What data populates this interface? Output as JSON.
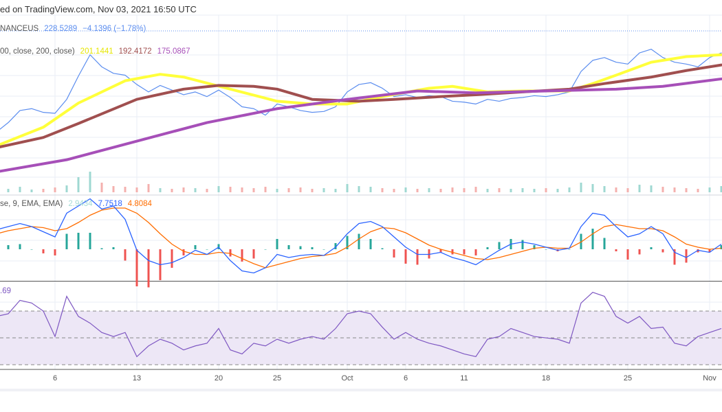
{
  "header": {
    "text": "ed on TradingView.com, Nov 03, 2021 16:50 UTC"
  },
  "legends": {
    "symbol": {
      "name": "NANCEUS",
      "last": "228.5289",
      "change": "−4.1396 (−1.78%)"
    },
    "ma": {
      "params": "00, close, 200, close)",
      "v1": "201.1441",
      "v2": "192.4172",
      "v3": "175.0867"
    },
    "macd": {
      "params": "se, 9, EMA, EMA)",
      "hist": "2.9434",
      "macd": "7.7518",
      "signal": "4.8084"
    },
    "rsi": {
      "value": ".69"
    }
  },
  "colors": {
    "price": "#5b8def",
    "ma50": "#ffff3b",
    "ma100": "#a04f4f",
    "ma200": "#a64fb8",
    "macd": "#2962ff",
    "signal": "#ff6d00",
    "hist_up": "#26a69a",
    "hist_down": "#ef5350",
    "rsi": "#7e57c2",
    "rsi_band": "#ede7f6",
    "grid": "#e9eef5"
  },
  "chart_data": [
    {
      "type": "line",
      "panel": "price",
      "ylim": [
        60,
        230
      ],
      "series": [
        {
          "name": "price",
          "color": "#5b8def",
          "values": [
            125,
            135,
            148,
            150,
            146,
            145,
            160,
            185,
            208,
            195,
            188,
            186,
            176,
            168,
            175,
            170,
            165,
            168,
            163,
            170,
            162,
            152,
            150,
            143,
            155,
            152,
            148,
            146,
            147,
            152,
            168,
            176,
            178,
            172,
            163,
            165,
            162,
            164,
            163,
            158,
            157,
            155,
            160,
            158,
            161,
            162,
            164,
            163,
            165,
            168,
            190,
            202,
            205,
            200,
            198,
            210,
            214,
            205,
            200,
            198,
            195,
            205,
            210
          ]
        },
        {
          "name": "MA 50",
          "color": "#ffff3b",
          "points": [
            [
              0,
              110
            ],
            [
              4,
              130
            ],
            [
              7,
              156
            ],
            [
              11,
              180
            ],
            [
              14,
              187
            ],
            [
              16,
              184
            ],
            [
              20,
              171
            ],
            [
              24,
              158
            ],
            [
              27,
              155
            ],
            [
              30,
              155
            ],
            [
              33,
              163
            ],
            [
              37,
              172
            ],
            [
              39,
              174
            ],
            [
              42,
              168
            ],
            [
              45,
              169
            ],
            [
              49,
              169
            ],
            [
              51,
              177
            ],
            [
              53,
              186
            ],
            [
              56,
              200
            ],
            [
              59,
              206
            ],
            [
              62,
              208
            ]
          ]
        },
        {
          "name": "MA 100",
          "color": "#a04f4f",
          "points": [
            [
              0,
              108
            ],
            [
              4,
              119
            ],
            [
              7,
              134
            ],
            [
              12,
              160
            ],
            [
              16,
              171
            ],
            [
              19,
              175
            ],
            [
              22,
              174
            ],
            [
              24,
              171
            ],
            [
              27,
              160
            ],
            [
              31,
              158
            ],
            [
              34,
              160
            ],
            [
              38,
              163
            ],
            [
              41,
              165
            ],
            [
              45,
              168
            ],
            [
              49,
              171
            ],
            [
              52,
              177
            ],
            [
              56,
              184
            ],
            [
              59,
              191
            ],
            [
              62,
              197
            ]
          ]
        },
        {
          "name": "MA 200",
          "color": "#a64fb8",
          "points": [
            [
              0,
              82
            ],
            [
              6,
              95
            ],
            [
              12,
              115
            ],
            [
              18,
              135
            ],
            [
              24,
              150
            ],
            [
              30,
              160
            ],
            [
              36,
              169
            ],
            [
              41,
              167
            ],
            [
              47,
              169
            ],
            [
              53,
              171
            ],
            [
              57,
              174
            ],
            [
              62,
              182
            ]
          ]
        }
      ],
      "volume": [
        6,
        5,
        8,
        4,
        5,
        7,
        10,
        22,
        30,
        14,
        9,
        8,
        7,
        12,
        6,
        5,
        7,
        6,
        5,
        9,
        8,
        7,
        6,
        8,
        5,
        6,
        7,
        5,
        6,
        5,
        12,
        9,
        8,
        6,
        5,
        7,
        5,
        6,
        5,
        7,
        6,
        8,
        5,
        6,
        5,
        6,
        5,
        6,
        5,
        7,
        14,
        12,
        9,
        7,
        6,
        11,
        10,
        8,
        7,
        6,
        5,
        7,
        9
      ]
    },
    {
      "type": "macd",
      "panel": "macd",
      "ylim": [
        -30,
        50
      ],
      "macd": [
        19,
        22,
        25,
        22,
        17,
        12,
        35,
        42,
        49,
        39,
        42,
        29,
        -1,
        -11,
        -15,
        -13,
        -8,
        -1,
        -5,
        2,
        -11,
        -21,
        -23,
        -18,
        -5,
        -8,
        -6,
        -5,
        -6,
        2,
        15,
        25,
        27,
        22,
        12,
        2,
        -5,
        -5,
        -3,
        -8,
        -11,
        -15,
        -8,
        -1,
        5,
        7,
        5,
        2,
        -1,
        1,
        22,
        35,
        33,
        22,
        12,
        15,
        22,
        15,
        -3,
        -8,
        -1,
        -3,
        5
      ],
      "signal": [
        15,
        18,
        20,
        22,
        21,
        18,
        20,
        26,
        33,
        38,
        40,
        40,
        35,
        26,
        15,
        5,
        -2,
        -5,
        -5,
        -3,
        -4,
        -9,
        -14,
        -18,
        -15,
        -12,
        -9,
        -7,
        -6,
        -4,
        2,
        10,
        17,
        21,
        20,
        16,
        10,
        4,
        0,
        -3,
        -6,
        -9,
        -10,
        -8,
        -5,
        -2,
        1,
        2,
        1,
        1,
        7,
        15,
        22,
        24,
        22,
        20,
        20,
        18,
        12,
        5,
        2,
        0,
        1
      ]
    },
    {
      "type": "line",
      "panel": "rsi",
      "ylim": [
        28,
        91
      ],
      "bands": [
        30,
        50,
        70
      ],
      "values": [
        66,
        68,
        78,
        76,
        70,
        51,
        81,
        66,
        61,
        54,
        51,
        54,
        36,
        44,
        49,
        46,
        41,
        44,
        46,
        57,
        41,
        38,
        46,
        44,
        49,
        46,
        49,
        51,
        49,
        57,
        68,
        70,
        68,
        58,
        49,
        54,
        49,
        46,
        44,
        41,
        38,
        36,
        49,
        51,
        57,
        54,
        51,
        50,
        49,
        46,
        76,
        84,
        81,
        66,
        61,
        66,
        57,
        58,
        46,
        44,
        51,
        54,
        57
      ]
    }
  ],
  "x_axis": {
    "first_date": "2021-09-01",
    "ticks": [
      {
        "label": "6",
        "date": "2021-09-06"
      },
      {
        "label": "13",
        "date": "2021-09-13"
      },
      {
        "label": "20",
        "date": "2021-09-20"
      },
      {
        "label": "25",
        "date": "2021-09-25"
      },
      {
        "label": "Oct",
        "date": "2021-10-01"
      },
      {
        "label": "6",
        "date": "2021-10-06"
      },
      {
        "label": "11",
        "date": "2021-10-11"
      },
      {
        "label": "18",
        "date": "2021-10-18"
      },
      {
        "label": "25",
        "date": "2021-10-25"
      },
      {
        "label": "Nov",
        "date": "2021-11-01"
      }
    ]
  }
}
